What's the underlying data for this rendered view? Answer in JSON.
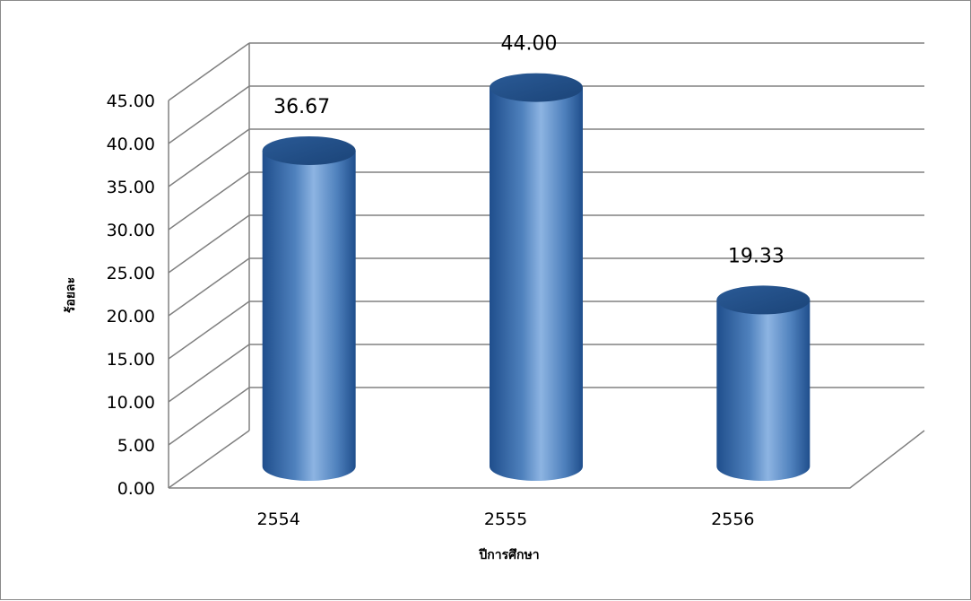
{
  "chart_data": {
    "type": "bar",
    "style": "3d-cylinder",
    "categories": [
      "2554",
      "2555",
      "2556"
    ],
    "values": [
      36.67,
      44.0,
      19.33
    ],
    "data_labels": [
      "36.67",
      "44.00",
      "19.33"
    ],
    "xlabel": "ปีการศึกษา",
    "ylabel": "ร้อยละ",
    "ylim": [
      0,
      45
    ],
    "yticks": [
      "0.00",
      "5.00",
      "10.00",
      "15.00",
      "20.00",
      "25.00",
      "30.00",
      "35.00",
      "40.00",
      "45.00"
    ],
    "grid": true,
    "legend": "none",
    "colors": {
      "bar": "#4f81bd",
      "bar_dark": "#1f4e8c",
      "bar_light": "#8db4e2",
      "grid": "#808080"
    }
  }
}
